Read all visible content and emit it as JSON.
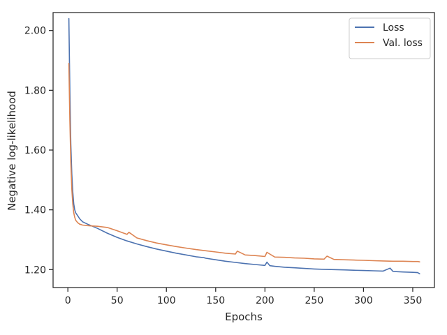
{
  "chart_data": {
    "type": "line",
    "title": "",
    "xlabel": "Epochs",
    "ylabel": "Negative log-likelihood",
    "xlim": [
      -15,
      372
    ],
    "ylim": [
      1.14,
      2.06
    ],
    "xticks": [
      0,
      50,
      100,
      150,
      200,
      250,
      300,
      350
    ],
    "xtick_labels": [
      "0",
      "50",
      "100",
      "150",
      "200",
      "250",
      "300",
      "350"
    ],
    "yticks": [
      1.2,
      1.4,
      1.6,
      1.8,
      2.0
    ],
    "ytick_labels": [
      "1.20",
      "1.40",
      "1.60",
      "1.80",
      "2.00"
    ],
    "grid": false,
    "legend_position": "top-right",
    "series": [
      {
        "name": "Loss",
        "color": "#4c72b0",
        "x": [
          1,
          2,
          3,
          4,
          5,
          6,
          7,
          8,
          10,
          12,
          15,
          20,
          25,
          30,
          40,
          50,
          60,
          70,
          80,
          90,
          100,
          110,
          120,
          130,
          138,
          140,
          150,
          160,
          170,
          180,
          190,
          200,
          202,
          205,
          210,
          220,
          230,
          240,
          250,
          260,
          270,
          280,
          290,
          300,
          310,
          320,
          327,
          330,
          340,
          350,
          355,
          357
        ],
        "y": [
          2.04,
          1.8,
          1.62,
          1.52,
          1.46,
          1.42,
          1.4,
          1.39,
          1.38,
          1.37,
          1.36,
          1.352,
          1.345,
          1.338,
          1.322,
          1.308,
          1.296,
          1.286,
          1.277,
          1.269,
          1.262,
          1.255,
          1.249,
          1.243,
          1.24,
          1.238,
          1.233,
          1.228,
          1.224,
          1.22,
          1.217,
          1.214,
          1.225,
          1.213,
          1.211,
          1.208,
          1.206,
          1.204,
          1.202,
          1.201,
          1.2,
          1.199,
          1.198,
          1.197,
          1.196,
          1.195,
          1.205,
          1.194,
          1.192,
          1.191,
          1.19,
          1.186
        ]
      },
      {
        "name": "Val. loss",
        "color": "#dd8452",
        "x": [
          1,
          2,
          3,
          4,
          5,
          6,
          7,
          8,
          10,
          12,
          15,
          20,
          25,
          30,
          35,
          40,
          50,
          60,
          62,
          70,
          80,
          90,
          100,
          110,
          120,
          130,
          140,
          150,
          160,
          170,
          172,
          180,
          190,
          200,
          202,
          210,
          220,
          230,
          240,
          250,
          260,
          263,
          270,
          280,
          290,
          300,
          310,
          320,
          330,
          340,
          350,
          355,
          357
        ],
        "y": [
          1.89,
          1.7,
          1.56,
          1.47,
          1.42,
          1.39,
          1.375,
          1.365,
          1.357,
          1.352,
          1.349,
          1.347,
          1.346,
          1.345,
          1.343,
          1.341,
          1.33,
          1.318,
          1.325,
          1.306,
          1.297,
          1.289,
          1.283,
          1.277,
          1.272,
          1.267,
          1.263,
          1.259,
          1.255,
          1.252,
          1.262,
          1.249,
          1.247,
          1.244,
          1.258,
          1.242,
          1.241,
          1.239,
          1.238,
          1.236,
          1.235,
          1.245,
          1.234,
          1.233,
          1.232,
          1.231,
          1.23,
          1.229,
          1.228,
          1.228,
          1.227,
          1.227,
          1.226
        ]
      }
    ]
  }
}
